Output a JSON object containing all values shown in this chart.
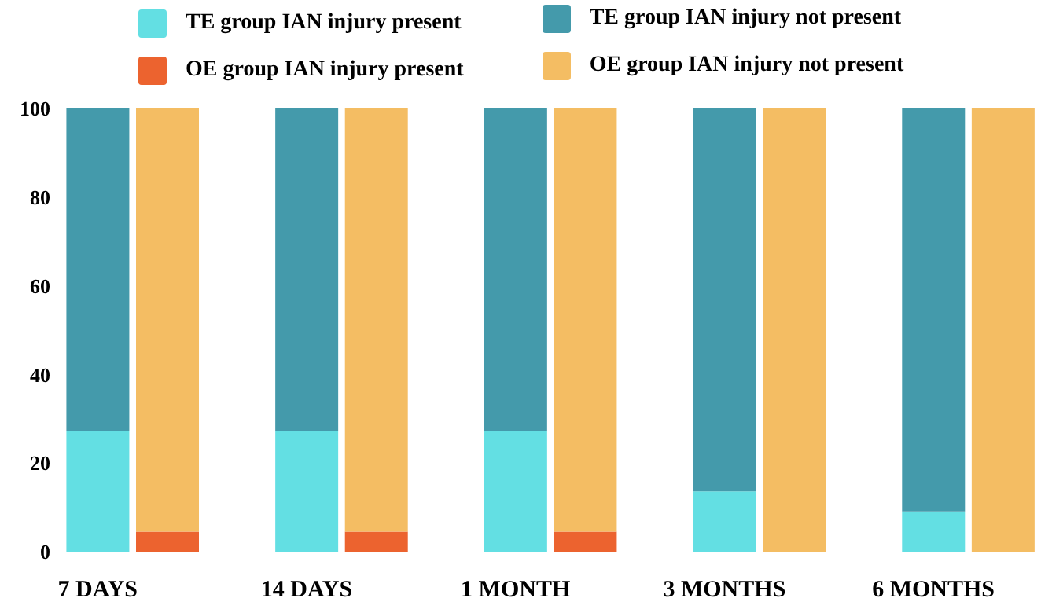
{
  "chart_data": {
    "type": "bar",
    "stacked": true,
    "categories": [
      "7 DAYS",
      null,
      null,
      "14 DAYS",
      null,
      null,
      "1 MONTH",
      null,
      null,
      "3 MONTHS",
      null,
      null,
      "6 MONTHS",
      null
    ],
    "series": [
      {
        "name": "TE group IAN injury present",
        "color": "#63dfe3",
        "values": [
          27.3,
          null,
          null,
          27.3,
          null,
          null,
          27.3,
          null,
          null,
          13.6,
          null,
          null,
          9.1,
          null
        ]
      },
      {
        "name": "TE group IAN injury not present",
        "color": "#449aab",
        "values": [
          72.7,
          null,
          null,
          72.7,
          null,
          null,
          72.7,
          null,
          null,
          86.4,
          null,
          null,
          90.9,
          null
        ]
      },
      {
        "name": "OE group IAN injury present",
        "color": "#ec632f",
        "values": [
          null,
          4.5,
          null,
          null,
          4.5,
          null,
          null,
          4.5,
          null,
          null,
          0,
          null,
          null,
          0
        ]
      },
      {
        "name": "OE group IAN injury not present",
        "color": "#f4bd63",
        "values": [
          null,
          95.5,
          null,
          null,
          95.5,
          null,
          null,
          95.5,
          null,
          null,
          100,
          null,
          null,
          100
        ]
      }
    ],
    "ylim": [
      0,
      100
    ],
    "yticks": [
      0,
      20,
      40,
      60,
      80,
      100
    ],
    "grid": false,
    "legend": "top"
  }
}
